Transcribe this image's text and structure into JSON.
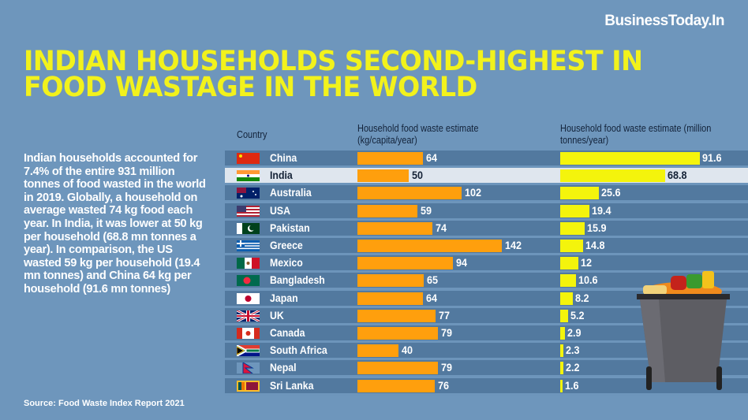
{
  "logo": "BusinessToday.In",
  "title_lines": [
    "INDIAN HOUSEHOLDS SECOND-HIGHEST IN",
    "FOOD WASTAGE IN THE WORLD"
  ],
  "blurb": "Indian households accounted for 7.4% of the entire 931 million tonnes of food wasted in the world in 2019. Globally, a household on average wasted 74 kg food each year. In India, it was lower at 50 kg per household (68.8 mn tonnes a year). In comparison, the US wasted 59 kg per household (19.4 mn tonnes) and China 64 kg per household (91.6 mn tonnes)",
  "source": "Source: Food Waste Index Report 2021",
  "colors": {
    "background": "#6e96bc",
    "title": "#f2f21c",
    "bar_per_capita": "#ff9f0d",
    "bar_total": "#f4f40c",
    "row": "#52799f",
    "highlight_row": "#dfe6ee"
  },
  "chart_data": {
    "type": "bar",
    "orientation": "horizontal",
    "highlight": "India",
    "column_header": "Country",
    "categories": [
      "China",
      "India",
      "Australia",
      "USA",
      "Pakistan",
      "Greece",
      "Mexico",
      "Bangladesh",
      "Japan",
      "UK",
      "Canada",
      "South Africa",
      "Nepal",
      "Sri Lanka"
    ],
    "series": [
      {
        "name": "Household food waste estimate (kg/capita/year)",
        "values": [
          64,
          50,
          102,
          59,
          74,
          142,
          94,
          65,
          64,
          77,
          79,
          40,
          79,
          76
        ]
      },
      {
        "name": "Household food waste estimate (million tonnes/year)",
        "values": [
          91.6,
          68.8,
          25.6,
          19.4,
          15.9,
          14.8,
          12,
          10.6,
          8.2,
          5.2,
          2.9,
          2.3,
          2.2,
          1.6
        ]
      }
    ],
    "flags": [
      "china-flag",
      "india-flag",
      "australia-flag",
      "usa-flag",
      "pakistan-flag",
      "greece-flag",
      "mexico-flag",
      "bangladesh-flag",
      "japan-flag",
      "uk-flag",
      "canada-flag",
      "south-africa-flag",
      "nepal-flag",
      "sri-lanka-flag"
    ]
  }
}
